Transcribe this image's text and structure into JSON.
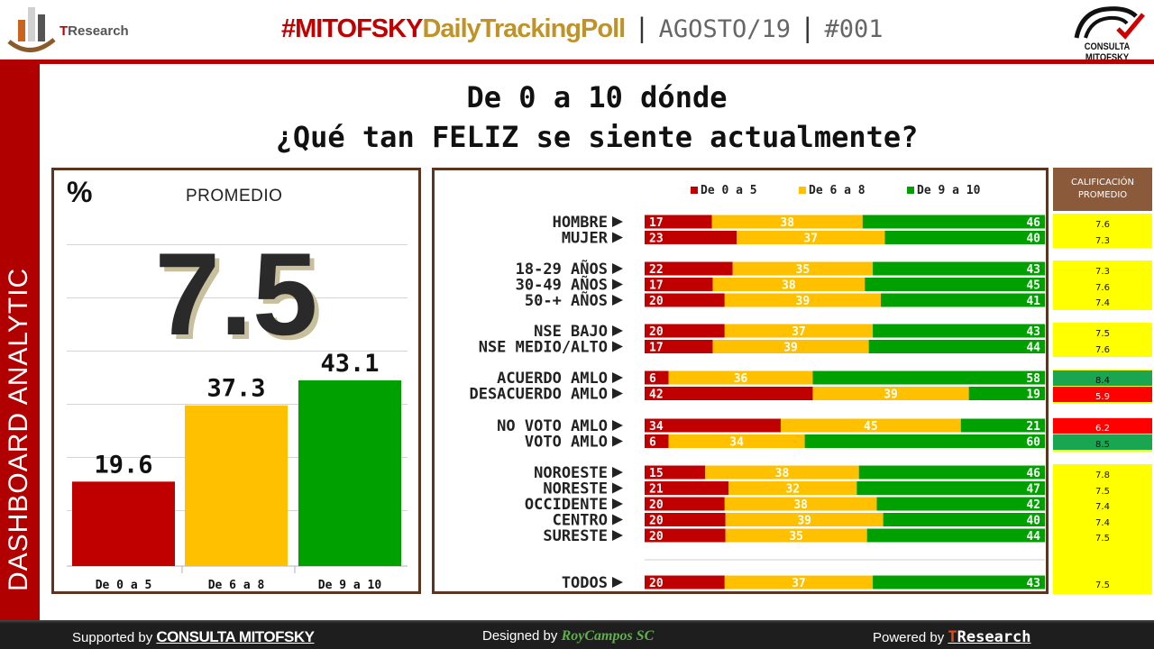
{
  "header": {
    "title_hash": "#MITOFSKY",
    "title_daily": "DailyTrackingPoll",
    "separator": "|",
    "date": "AGOSTO/19",
    "number": "#001",
    "logo_left": "TResearch",
    "logo_right": "CONSULTA MITOFSKY"
  },
  "sidebar": {
    "label": "DASHBOARD ANALYTIC"
  },
  "question": {
    "line1": "De 0 a 10 dónde",
    "line2": "¿Qué tan FELIZ se siente actualmente?"
  },
  "left_panel": {
    "percent_symbol": "%",
    "promedio_label": "PROMEDIO",
    "promedio_value": "7.5"
  },
  "colors": {
    "low": "#c00000",
    "mid": "#ffc000",
    "high": "#00a000",
    "avg_yellow": "#ffff00",
    "avg_green": "#1aa550",
    "avg_red": "#ff0000"
  },
  "right_panel": {
    "avg_header": "CALIFICACIÓN PROMEDIO"
  },
  "chart_data": [
    {
      "type": "bar",
      "categories": [
        "De 0 a 5",
        "De 6 a 8",
        "De 9 a 10"
      ],
      "values": [
        19.6,
        37.3,
        43.1
      ],
      "ylim": [
        0,
        60
      ],
      "grid": true
    },
    {
      "type": "bar",
      "orientation": "horizontal",
      "stacked": true,
      "legend": [
        "De 0 a 5",
        "De 6 a 8",
        "De 9 a 10"
      ],
      "legend_position": "top",
      "groups": [
        {
          "rows": [
            {
              "label": "HOMBRE",
              "values": [
                17,
                38,
                46
              ],
              "avg": "7.6",
              "avg_color": "yellow"
            },
            {
              "label": "MUJER",
              "values": [
                23,
                37,
                40
              ],
              "avg": "7.3",
              "avg_color": "yellow"
            }
          ]
        },
        {
          "rows": [
            {
              "label": "18-29 AÑOS",
              "values": [
                22,
                35,
                43
              ],
              "avg": "7.3",
              "avg_color": "yellow"
            },
            {
              "label": "30-49 AÑOS",
              "values": [
                17,
                38,
                45
              ],
              "avg": "7.6",
              "avg_color": "yellow"
            },
            {
              "label": "50-+ AÑOS",
              "values": [
                20,
                39,
                41
              ],
              "avg": "7.4",
              "avg_color": "yellow"
            }
          ]
        },
        {
          "rows": [
            {
              "label": "NSE BAJO",
              "values": [
                20,
                37,
                43
              ],
              "avg": "7.5",
              "avg_color": "yellow"
            },
            {
              "label": "NSE MEDIO/ALTO",
              "values": [
                17,
                39,
                44
              ],
              "avg": "7.6",
              "avg_color": "yellow"
            }
          ]
        },
        {
          "rows": [
            {
              "label": "ACUERDO AMLO",
              "values": [
                6,
                36,
                58
              ],
              "avg": "8.4",
              "avg_color": "green"
            },
            {
              "label": "DESACUERDO AMLO",
              "values": [
                42,
                39,
                19
              ],
              "avg": "5.9",
              "avg_color": "red"
            }
          ]
        },
        {
          "rows": [
            {
              "label": "NO VOTO AMLO",
              "values": [
                34,
                45,
                21
              ],
              "avg": "6.2",
              "avg_color": "red"
            },
            {
              "label": "VOTO AMLO",
              "values": [
                6,
                34,
                60
              ],
              "avg": "8.5",
              "avg_color": "green"
            }
          ]
        },
        {
          "rows": [
            {
              "label": "NOROESTE",
              "values": [
                15,
                38,
                46
              ],
              "avg": "7.8",
              "avg_color": "yellow"
            },
            {
              "label": "NORESTE",
              "values": [
                21,
                32,
                47
              ],
              "avg": "7.5",
              "avg_color": "yellow"
            },
            {
              "label": "OCCIDENTE",
              "values": [
                20,
                38,
                42
              ],
              "avg": "7.4",
              "avg_color": "yellow"
            },
            {
              "label": "CENTRO",
              "values": [
                20,
                39,
                40
              ],
              "avg": "7.4",
              "avg_color": "yellow"
            },
            {
              "label": "SURESTE",
              "values": [
                20,
                35,
                44
              ],
              "avg": "7.5",
              "avg_color": "yellow"
            }
          ]
        },
        {
          "rows": [
            {
              "label": "TODOS",
              "values": [
                20,
                37,
                43
              ],
              "avg": "7.5",
              "avg_color": "yellow"
            }
          ]
        }
      ]
    }
  ],
  "footer": {
    "supported_prefix": "Supported by",
    "supported_brand": "CONSULTA MITOFSKY",
    "designed_prefix": "Designed by",
    "designed_brand": "RoyCampos SC",
    "powered_prefix": "Powered by",
    "powered_brand_t": "T",
    "powered_brand_rest": "Research"
  }
}
